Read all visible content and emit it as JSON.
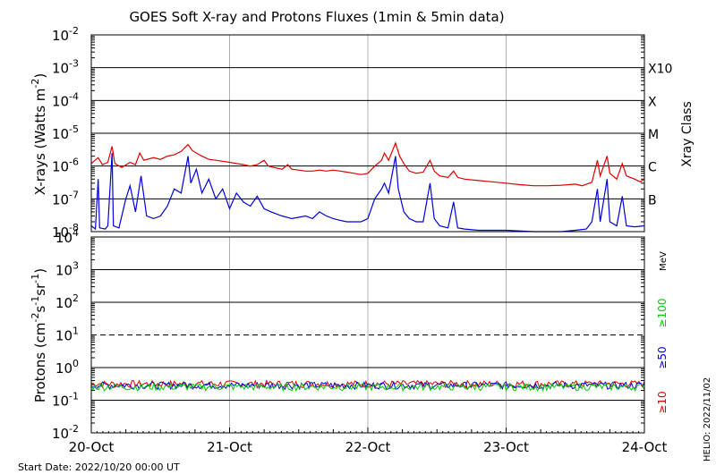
{
  "chart_data": [
    {
      "type": "line",
      "panel": "xrays",
      "title": "GOES Soft X-ray and Protons Fluxes   (1min & 5min data)",
      "ylabel": "X-rays (Watts m",
      "ylabel_sup": "-2",
      "ylabel_close": ")",
      "yscale": "log",
      "ylim": [
        1e-08,
        0.01
      ],
      "grid": true,
      "y_ticks": [
        {
          "value": 0.01,
          "base": "10",
          "exp": "-2"
        },
        {
          "value": 0.001,
          "base": "10",
          "exp": "-3"
        },
        {
          "value": 0.0001,
          "base": "10",
          "exp": "-4"
        },
        {
          "value": 1e-05,
          "base": "10",
          "exp": "-5"
        },
        {
          "value": 1e-06,
          "base": "10",
          "exp": "-6"
        },
        {
          "value": 1e-07,
          "base": "10",
          "exp": "-7"
        },
        {
          "value": 1e-08,
          "base": "10",
          "exp": "-8"
        }
      ],
      "right_axis_label": "Xray Class",
      "class_labels": [
        {
          "label": "X10",
          "value": 0.001
        },
        {
          "label": "X",
          "value": 0.0001
        },
        {
          "label": "M",
          "value": 1e-05
        },
        {
          "label": "C",
          "value": 1e-06
        },
        {
          "label": "B",
          "value": 1e-07
        }
      ],
      "x_unit": "days since 2022-10-20 00:00 UT",
      "series": [
        {
          "color": "#dd0000",
          "points": [
            [
              0.0,
              1.2e-06
            ],
            [
              0.05,
              1.8e-06
            ],
            [
              0.08,
              1.1e-06
            ],
            [
              0.12,
              1.3e-06
            ],
            [
              0.15,
              4e-06
            ],
            [
              0.17,
              1.2e-06
            ],
            [
              0.22,
              9e-07
            ],
            [
              0.28,
              1.3e-06
            ],
            [
              0.32,
              1.1e-06
            ],
            [
              0.35,
              2.5e-06
            ],
            [
              0.38,
              1.5e-06
            ],
            [
              0.45,
              1.8e-06
            ],
            [
              0.5,
              1.6e-06
            ],
            [
              0.55,
              2e-06
            ],
            [
              0.6,
              2.2e-06
            ],
            [
              0.65,
              2.8e-06
            ],
            [
              0.7,
              4.5e-06
            ],
            [
              0.73,
              3e-06
            ],
            [
              0.76,
              2.5e-06
            ],
            [
              0.8,
              2e-06
            ],
            [
              0.85,
              1.6e-06
            ],
            [
              0.9,
              1.5e-06
            ],
            [
              0.95,
              1.4e-06
            ],
            [
              1.0,
              1.3e-06
            ],
            [
              1.05,
              1.2e-06
            ],
            [
              1.1,
              1.1e-06
            ],
            [
              1.15,
              1e-06
            ],
            [
              1.2,
              1.1e-06
            ],
            [
              1.25,
              1.5e-06
            ],
            [
              1.28,
              1e-06
            ],
            [
              1.32,
              9e-07
            ],
            [
              1.38,
              8e-07
            ],
            [
              1.42,
              1.1e-06
            ],
            [
              1.45,
              8e-07
            ],
            [
              1.5,
              7.5e-07
            ],
            [
              1.55,
              7e-07
            ],
            [
              1.6,
              7e-07
            ],
            [
              1.65,
              7.5e-07
            ],
            [
              1.7,
              7e-07
            ],
            [
              1.75,
              7.5e-07
            ],
            [
              1.8,
              7e-07
            ],
            [
              1.85,
              6.5e-07
            ],
            [
              1.9,
              6e-07
            ],
            [
              1.95,
              5.5e-07
            ],
            [
              2.0,
              6e-07
            ],
            [
              2.05,
              1e-06
            ],
            [
              2.1,
              1.5e-06
            ],
            [
              2.12,
              2.5e-06
            ],
            [
              2.15,
              1.5e-06
            ],
            [
              2.2,
              5e-06
            ],
            [
              2.23,
              2e-06
            ],
            [
              2.26,
              1.2e-06
            ],
            [
              2.3,
              7e-07
            ],
            [
              2.35,
              6e-07
            ],
            [
              2.4,
              6.5e-07
            ],
            [
              2.45,
              1.5e-06
            ],
            [
              2.48,
              7e-07
            ],
            [
              2.52,
              5e-07
            ],
            [
              2.58,
              4.5e-07
            ],
            [
              2.62,
              7e-07
            ],
            [
              2.65,
              4.5e-07
            ],
            [
              2.7,
              4e-07
            ],
            [
              2.8,
              3.6e-07
            ],
            [
              2.9,
              3.3e-07
            ],
            [
              3.0,
              3e-07
            ],
            [
              3.1,
              2.7e-07
            ],
            [
              3.2,
              2.5e-07
            ],
            [
              3.3,
              2.5e-07
            ],
            [
              3.4,
              2.6e-07
            ],
            [
              3.5,
              2.8e-07
            ],
            [
              3.55,
              2.5e-07
            ],
            [
              3.62,
              3.2e-07
            ],
            [
              3.66,
              1.5e-06
            ],
            [
              3.68,
              5e-07
            ],
            [
              3.73,
              2e-06
            ],
            [
              3.75,
              6e-07
            ],
            [
              3.8,
              4e-07
            ],
            [
              3.84,
              1.2e-06
            ],
            [
              3.87,
              5e-07
            ],
            [
              3.93,
              4e-07
            ],
            [
              3.97,
              3.3e-07
            ],
            [
              4.0,
              4e-07
            ]
          ]
        },
        {
          "color": "#0000dd",
          "points": [
            [
              0.0,
              1.5e-08
            ],
            [
              0.03,
              1.2e-08
            ],
            [
              0.05,
              4e-07
            ],
            [
              0.06,
              1.3e-08
            ],
            [
              0.1,
              1.2e-08
            ],
            [
              0.12,
              1.5e-08
            ],
            [
              0.15,
              2.5e-06
            ],
            [
              0.16,
              1.5e-08
            ],
            [
              0.2,
              1.3e-08
            ],
            [
              0.25,
              1e-07
            ],
            [
              0.28,
              2.5e-07
            ],
            [
              0.32,
              4e-08
            ],
            [
              0.36,
              5e-07
            ],
            [
              0.4,
              3e-08
            ],
            [
              0.45,
              2.5e-08
            ],
            [
              0.5,
              3e-08
            ],
            [
              0.55,
              6e-08
            ],
            [
              0.6,
              2e-07
            ],
            [
              0.65,
              1.5e-07
            ],
            [
              0.7,
              2e-06
            ],
            [
              0.72,
              3e-07
            ],
            [
              0.76,
              8e-07
            ],
            [
              0.8,
              1.5e-07
            ],
            [
              0.85,
              4e-07
            ],
            [
              0.9,
              1e-07
            ],
            [
              0.95,
              2e-07
            ],
            [
              1.0,
              5e-08
            ],
            [
              1.05,
              1.5e-07
            ],
            [
              1.1,
              8e-08
            ],
            [
              1.15,
              6e-08
            ],
            [
              1.2,
              1.2e-07
            ],
            [
              1.25,
              5e-08
            ],
            [
              1.3,
              4e-08
            ],
            [
              1.38,
              3e-08
            ],
            [
              1.45,
              2.5e-08
            ],
            [
              1.55,
              3e-08
            ],
            [
              1.6,
              2.5e-08
            ],
            [
              1.65,
              4e-08
            ],
            [
              1.7,
              3e-08
            ],
            [
              1.75,
              2.5e-08
            ],
            [
              1.8,
              2.2e-08
            ],
            [
              1.85,
              2e-08
            ],
            [
              1.95,
              2e-08
            ],
            [
              2.0,
              2.5e-08
            ],
            [
              2.05,
              1e-07
            ],
            [
              2.1,
              2e-07
            ],
            [
              2.12,
              3e-07
            ],
            [
              2.15,
              1.5e-07
            ],
            [
              2.2,
              2e-06
            ],
            [
              2.22,
              2e-07
            ],
            [
              2.26,
              4e-08
            ],
            [
              2.3,
              2.5e-08
            ],
            [
              2.35,
              2e-08
            ],
            [
              2.4,
              2e-08
            ],
            [
              2.45,
              3e-07
            ],
            [
              2.48,
              2.5e-08
            ],
            [
              2.52,
              1.5e-08
            ],
            [
              2.58,
              1.3e-08
            ],
            [
              2.62,
              8e-08
            ],
            [
              2.65,
              1.3e-08
            ],
            [
              2.7,
              1.2e-08
            ],
            [
              2.8,
              1.1e-08
            ],
            [
              3.0,
              1.1e-08
            ],
            [
              3.2,
              1e-08
            ],
            [
              3.4,
              1e-08
            ],
            [
              3.5,
              1.1e-08
            ],
            [
              3.58,
              1.2e-08
            ],
            [
              3.62,
              2e-08
            ],
            [
              3.66,
              2e-07
            ],
            [
              3.68,
              2e-08
            ],
            [
              3.73,
              4e-07
            ],
            [
              3.75,
              2e-08
            ],
            [
              3.8,
              1.5e-08
            ],
            [
              3.84,
              1.2e-07
            ],
            [
              3.87,
              1.5e-08
            ],
            [
              3.93,
              1.4e-08
            ],
            [
              4.0,
              1.5e-08
            ]
          ]
        }
      ]
    },
    {
      "type": "line",
      "panel": "protons",
      "ylabel_main": "Protons (cm",
      "ylabel_sup1": "-2",
      "ylabel_mid": "s",
      "ylabel_sup2": "-1",
      "ylabel_mid2": "sr",
      "ylabel_sup3": "-1",
      "ylabel_end": ")",
      "yscale": "log",
      "ylim": [
        0.01,
        10000
      ],
      "grid": true,
      "threshold_line": {
        "value": 10,
        "style": "dashed"
      },
      "y_ticks": [
        {
          "value": 10000,
          "base": "10",
          "exp": "4"
        },
        {
          "value": 1000,
          "base": "10",
          "exp": "3"
        },
        {
          "value": 100,
          "base": "10",
          "exp": "2"
        },
        {
          "value": 10,
          "base": "10",
          "exp": "1"
        },
        {
          "value": 1,
          "base": "10",
          "exp": "0"
        },
        {
          "value": 0.1,
          "base": "10",
          "exp": "-1"
        },
        {
          "value": 0.01,
          "base": "10",
          "exp": "-2"
        }
      ],
      "right_unit": "MeV",
      "energy_labels": [
        {
          "label": "≥100",
          "color": "#00cc00"
        },
        {
          "label": "≥50",
          "color": "#0000dd"
        },
        {
          "label": "≥10",
          "color": "#dd0000"
        }
      ],
      "x_unit": "days since 2022-10-20 00:00 UT",
      "series": [
        {
          "name": "≥10",
          "color": "#dd0000",
          "level": 0.32
        },
        {
          "name": "≥50",
          "color": "#0000dd",
          "level": 0.29
        },
        {
          "name": "≥100",
          "color": "#00cc00",
          "level": 0.26
        }
      ],
      "x_ticks": [
        {
          "value": 0,
          "label": "20-Oct"
        },
        {
          "value": 1,
          "label": "21-Oct"
        },
        {
          "value": 2,
          "label": "22-Oct"
        },
        {
          "value": 3,
          "label": "23-Oct"
        },
        {
          "value": 4,
          "label": "24-Oct"
        }
      ]
    }
  ],
  "footer": {
    "start_date": "Start Date: 2022/10/20 00:00 UT",
    "credit": "HELIO: 2022/11/02"
  }
}
